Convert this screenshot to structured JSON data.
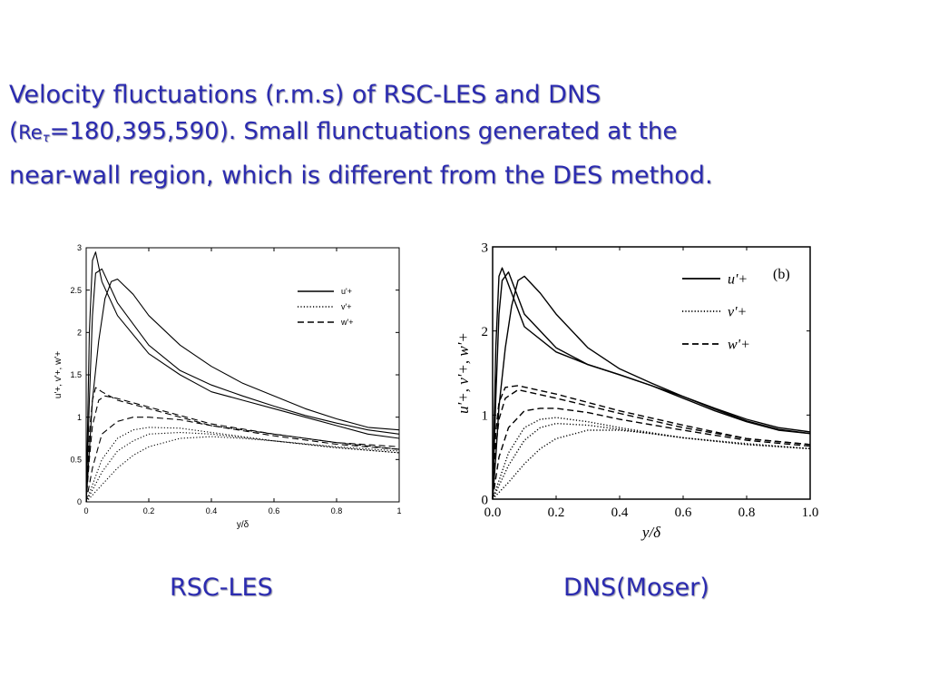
{
  "slide": {
    "title_line1": "Velocity fluctuations (r.m.s) of RSC-LES and DNS",
    "title_line2_open": "(",
    "title_line2_re": "Re",
    "title_line2_sub": "τ",
    "title_line2_rest": "=180,395,590). Small flunctuations generated at the",
    "title_line3": "near-wall region, which is different from the DES method.",
    "caption_left": "RSC-LES",
    "caption_right": "DNS(Moser)",
    "text_color": "#2b2bb0"
  },
  "chart_data": [
    {
      "type": "line",
      "panel": "RSC-LES",
      "xlabel": "y/δ",
      "ylabel": "u'+, v'+, w'+",
      "xlim": [
        0,
        1
      ],
      "ylim": [
        0,
        3
      ],
      "xticks": [
        "0",
        "0.2",
        "0.4",
        "0.6",
        "0.8",
        "1"
      ],
      "yticks": [
        "0",
        "0.5",
        "1",
        "1.5",
        "2",
        "2.5",
        "3"
      ],
      "legend": [
        "u'+",
        "v'+",
        "w'+"
      ],
      "legend_position": "top-right",
      "grid": false,
      "series": [
        {
          "name": "u'+",
          "style": "solid",
          "x": [
            0,
            0.01,
            0.02,
            0.03,
            0.05,
            0.1,
            0.2,
            0.3,
            0.4,
            0.5,
            0.6,
            0.7,
            0.8,
            0.9,
            1.0
          ],
          "y": [
            0,
            2.0,
            2.85,
            2.95,
            2.6,
            2.2,
            1.75,
            1.5,
            1.3,
            1.2,
            1.1,
            1.0,
            0.9,
            0.8,
            0.75
          ]
        },
        {
          "name": "u'+",
          "style": "solid",
          "x": [
            0,
            0.01,
            0.02,
            0.03,
            0.05,
            0.1,
            0.2,
            0.3,
            0.4,
            0.5,
            0.6,
            0.7,
            0.8,
            0.9,
            1.0
          ],
          "y": [
            0,
            1.2,
            2.2,
            2.7,
            2.75,
            2.35,
            1.85,
            1.55,
            1.38,
            1.25,
            1.13,
            1.02,
            0.93,
            0.85,
            0.8
          ]
        },
        {
          "name": "u'+",
          "style": "solid",
          "x": [
            0,
            0.01,
            0.02,
            0.04,
            0.06,
            0.08,
            0.1,
            0.15,
            0.2,
            0.3,
            0.4,
            0.5,
            0.6,
            0.7,
            0.8,
            0.9,
            1.0
          ],
          "y": [
            0,
            0.6,
            1.2,
            1.9,
            2.4,
            2.6,
            2.63,
            2.45,
            2.2,
            1.85,
            1.6,
            1.4,
            1.25,
            1.1,
            0.98,
            0.88,
            0.85
          ]
        },
        {
          "name": "w'+",
          "style": "dashed",
          "x": [
            0,
            0.01,
            0.02,
            0.03,
            0.05,
            0.1,
            0.2,
            0.4,
            0.6,
            0.8,
            1.0
          ],
          "y": [
            0,
            0.8,
            1.2,
            1.35,
            1.3,
            1.2,
            1.1,
            0.9,
            0.78,
            0.68,
            0.62
          ]
        },
        {
          "name": "w'+",
          "style": "dashed",
          "x": [
            0,
            0.01,
            0.02,
            0.04,
            0.06,
            0.1,
            0.2,
            0.4,
            0.6,
            0.8,
            1.0
          ],
          "y": [
            0,
            0.5,
            0.9,
            1.2,
            1.25,
            1.22,
            1.12,
            0.92,
            0.8,
            0.7,
            0.65
          ]
        },
        {
          "name": "w'+",
          "style": "dashed",
          "x": [
            0,
            0.02,
            0.05,
            0.1,
            0.15,
            0.2,
            0.3,
            0.4,
            0.6,
            0.8,
            1.0
          ],
          "y": [
            0,
            0.4,
            0.8,
            0.95,
            1.0,
            1.0,
            0.97,
            0.9,
            0.8,
            0.7,
            0.62
          ]
        },
        {
          "name": "v'+",
          "style": "dotted",
          "x": [
            0,
            0.05,
            0.1,
            0.15,
            0.2,
            0.3,
            0.4,
            0.5,
            0.6,
            0.8,
            1.0
          ],
          "y": [
            0,
            0.5,
            0.75,
            0.85,
            0.88,
            0.87,
            0.82,
            0.77,
            0.72,
            0.64,
            0.58
          ]
        },
        {
          "name": "v'+",
          "style": "dotted",
          "x": [
            0,
            0.05,
            0.1,
            0.15,
            0.2,
            0.3,
            0.4,
            0.5,
            0.6,
            0.8,
            1.0
          ],
          "y": [
            0,
            0.35,
            0.6,
            0.72,
            0.8,
            0.82,
            0.8,
            0.76,
            0.72,
            0.64,
            0.58
          ]
        },
        {
          "name": "v'+",
          "style": "dotted",
          "x": [
            0,
            0.05,
            0.1,
            0.15,
            0.2,
            0.3,
            0.4,
            0.5,
            0.6,
            0.8,
            1.0
          ],
          "y": [
            0,
            0.2,
            0.4,
            0.55,
            0.65,
            0.75,
            0.77,
            0.75,
            0.72,
            0.65,
            0.6
          ]
        }
      ]
    },
    {
      "type": "line",
      "panel": "DNS(Moser)",
      "annotation": "(b)",
      "xlabel": "y/δ",
      "ylabel": "u'+, v'+, w'+",
      "xlim": [
        0,
        1
      ],
      "ylim": [
        0,
        3
      ],
      "xticks": [
        "0.0",
        "0.2",
        "0.4",
        "0.6",
        "0.8",
        "1.0"
      ],
      "yticks": [
        "0",
        "1",
        "2",
        "3"
      ],
      "legend": [
        "u'+",
        "v'+",
        "w'+"
      ],
      "legend_position": "top-right",
      "grid": false,
      "series": [
        {
          "name": "u'+",
          "style": "solid",
          "x": [
            0,
            0.01,
            0.02,
            0.03,
            0.05,
            0.1,
            0.2,
            0.3,
            0.4,
            0.5,
            0.6,
            0.7,
            0.8,
            0.9,
            1.0
          ],
          "y": [
            0,
            1.8,
            2.65,
            2.75,
            2.55,
            2.05,
            1.75,
            1.6,
            1.48,
            1.35,
            1.2,
            1.05,
            0.92,
            0.82,
            0.78
          ]
        },
        {
          "name": "u'+",
          "style": "solid",
          "x": [
            0,
            0.01,
            0.02,
            0.03,
            0.05,
            0.1,
            0.2,
            0.3,
            0.4,
            0.5,
            0.6,
            0.7,
            0.8,
            0.9,
            1.0
          ],
          "y": [
            0,
            1.2,
            2.2,
            2.6,
            2.7,
            2.2,
            1.8,
            1.6,
            1.48,
            1.35,
            1.22,
            1.07,
            0.93,
            0.83,
            0.78
          ]
        },
        {
          "name": "u'+",
          "style": "solid",
          "x": [
            0,
            0.01,
            0.02,
            0.04,
            0.06,
            0.08,
            0.1,
            0.15,
            0.2,
            0.3,
            0.4,
            0.5,
            0.6,
            0.7,
            0.8,
            0.9,
            1.0
          ],
          "y": [
            0,
            0.5,
            1.1,
            1.8,
            2.3,
            2.6,
            2.65,
            2.45,
            2.2,
            1.8,
            1.55,
            1.38,
            1.22,
            1.08,
            0.95,
            0.85,
            0.8
          ]
        },
        {
          "name": "w'+",
          "style": "dashed",
          "x": [
            0,
            0.01,
            0.02,
            0.04,
            0.08,
            0.2,
            0.4,
            0.6,
            0.8,
            1.0
          ],
          "y": [
            0,
            0.8,
            1.15,
            1.33,
            1.35,
            1.25,
            1.05,
            0.88,
            0.72,
            0.65
          ]
        },
        {
          "name": "w'+",
          "style": "dashed",
          "x": [
            0,
            0.01,
            0.02,
            0.04,
            0.08,
            0.2,
            0.4,
            0.6,
            0.8,
            1.0
          ],
          "y": [
            0,
            0.6,
            0.95,
            1.2,
            1.3,
            1.2,
            1.02,
            0.85,
            0.72,
            0.65
          ]
        },
        {
          "name": "w'+",
          "style": "dashed",
          "x": [
            0,
            0.02,
            0.05,
            0.1,
            0.15,
            0.2,
            0.3,
            0.4,
            0.6,
            0.8,
            1.0
          ],
          "y": [
            0,
            0.5,
            0.85,
            1.05,
            1.08,
            1.08,
            1.03,
            0.95,
            0.82,
            0.7,
            0.63
          ]
        },
        {
          "name": "v'+",
          "style": "dotted",
          "x": [
            0,
            0.05,
            0.1,
            0.15,
            0.2,
            0.3,
            0.4,
            0.5,
            0.6,
            0.8,
            1.0
          ],
          "y": [
            0,
            0.55,
            0.85,
            0.95,
            0.97,
            0.92,
            0.85,
            0.79,
            0.73,
            0.65,
            0.6
          ]
        },
        {
          "name": "v'+",
          "style": "dotted",
          "x": [
            0,
            0.05,
            0.1,
            0.15,
            0.2,
            0.3,
            0.4,
            0.5,
            0.6,
            0.8,
            1.0
          ],
          "y": [
            0,
            0.4,
            0.7,
            0.85,
            0.9,
            0.88,
            0.83,
            0.78,
            0.73,
            0.65,
            0.6
          ]
        },
        {
          "name": "v'+",
          "style": "dotted",
          "x": [
            0,
            0.05,
            0.1,
            0.15,
            0.2,
            0.3,
            0.4,
            0.5,
            0.6,
            0.8,
            1.0
          ],
          "y": [
            0,
            0.2,
            0.42,
            0.6,
            0.72,
            0.82,
            0.82,
            0.78,
            0.73,
            0.66,
            0.6
          ]
        }
      ]
    }
  ]
}
